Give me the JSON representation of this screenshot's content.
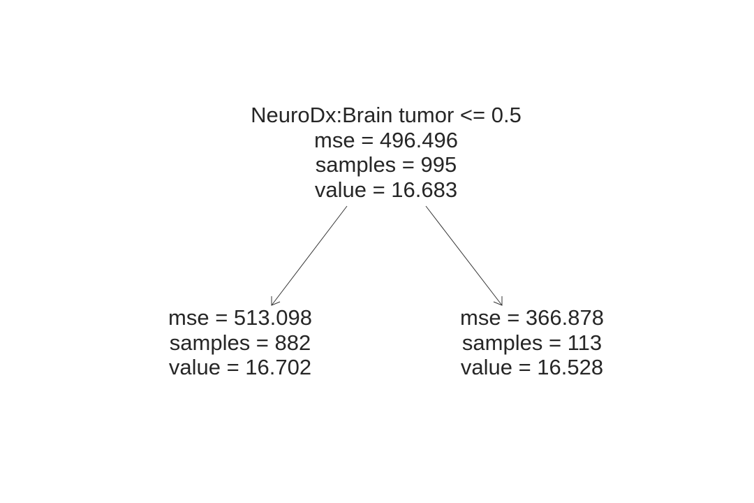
{
  "tree": {
    "root": {
      "split": "NeuroDx:Brain tumor <= 0.5",
      "mse": "mse = 496.496",
      "samples": "samples = 995",
      "value": "value = 16.683"
    },
    "left": {
      "mse": "mse = 513.098",
      "samples": "samples = 882",
      "value": "value = 16.702"
    },
    "right": {
      "mse": "mse = 366.878",
      "samples": "samples = 113",
      "value": "value = 16.528"
    }
  },
  "colors": {
    "text": "#262626",
    "edge": "#333333",
    "background": "#ffffff"
  }
}
